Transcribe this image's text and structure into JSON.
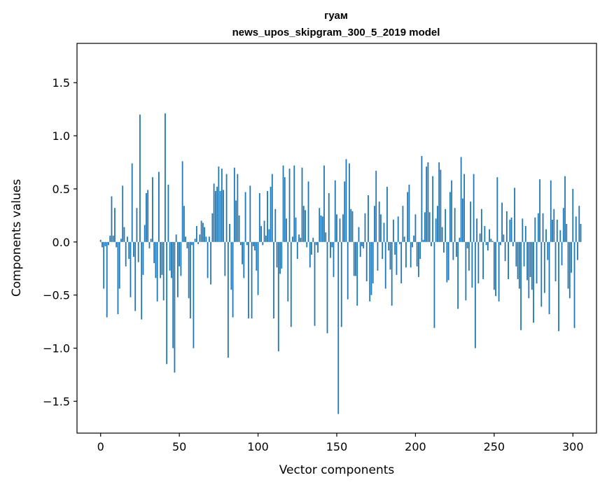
{
  "chart_data": {
    "type": "bar",
    "title": "гуам",
    "subtitle": "news_upos_skipgram_300_5_2019 model",
    "xlabel": "Vector components",
    "ylabel": "Components values",
    "xlim": [
      -15,
      315
    ],
    "ylim": [
      -1.8,
      1.87
    ],
    "xticks": [
      0,
      50,
      100,
      150,
      200,
      250,
      300
    ],
    "xtick_labels": [
      "0",
      "50",
      "100",
      "150",
      "200",
      "250",
      "300"
    ],
    "yticks": [
      -1.5,
      -1.0,
      -0.5,
      0.0,
      0.5,
      1.0,
      1.5
    ],
    "ytick_labels": [
      "−1.5",
      "−1.0",
      "−0.5",
      "0.0",
      "0.5",
      "1.0",
      "1.5"
    ],
    "bar_color": "#1f77b4",
    "grid": false,
    "values": [
      0.02,
      -0.05,
      -0.44,
      -0.04,
      -0.71,
      -0.03,
      0.06,
      0.43,
      0.06,
      0.32,
      -0.05,
      -0.68,
      -0.44,
      0.03,
      0.53,
      0.14,
      -0.23,
      0.05,
      -0.16,
      -0.52,
      0.74,
      -0.14,
      -0.65,
      0.32,
      -0.19,
      1.2,
      -0.73,
      -0.31,
      0.16,
      0.46,
      0.49,
      -0.06,
      0.03,
      0.61,
      -0.2,
      -0.34,
      -0.56,
      0.66,
      -0.34,
      -0.31,
      -0.55,
      1.21,
      -1.15,
      0.54,
      -0.27,
      -0.34,
      -1.0,
      -1.23,
      0.07,
      -0.52,
      -0.23,
      -0.32,
      0.76,
      0.34,
      0.05,
      -0.06,
      -0.53,
      -0.72,
      -0.03,
      -1.0,
      0.03,
      0.15,
      -0.02,
      0.07,
      0.2,
      0.18,
      0.14,
      0.05,
      -0.34,
      0.05,
      -0.4,
      0.27,
      0.55,
      0.48,
      0.52,
      0.71,
      0.48,
      0.69,
      0.49,
      -0.32,
      0.64,
      -1.09,
      0.17,
      -0.45,
      -0.71,
      0.7,
      0.39,
      0.64,
      0.25,
      -0.03,
      -0.21,
      -0.34,
      0.47,
      -0.03,
      -0.72,
      0.53,
      -0.72,
      -0.04,
      -0.08,
      -0.27,
      -0.5,
      0.46,
      0.15,
      -0.03,
      0.2,
      0.06,
      0.48,
      0.12,
      0.52,
      0.64,
      -0.72,
      0.31,
      -0.24,
      -1.03,
      -0.3,
      -0.25,
      0.72,
      0.61,
      0.22,
      -0.56,
      0.69,
      -0.8,
      0.05,
      0.72,
      0.23,
      -0.16,
      0.07,
      0.04,
      0.7,
      0.34,
      0.3,
      -0.05,
      0.57,
      -0.24,
      -0.12,
      0.04,
      -0.79,
      -0.03,
      -0.1,
      0.32,
      0.25,
      0.24,
      0.72,
      0.09,
      -0.86,
      0.46,
      -0.15,
      -0.05,
      -0.33,
      0.58,
      0.26,
      -1.62,
      0.22,
      -0.8,
      0.26,
      0.57,
      0.78,
      -0.54,
      0.74,
      0.31,
      0.29,
      -0.32,
      -0.32,
      -0.6,
      0.14,
      -0.14,
      -0.04,
      -0.06,
      0.27,
      -0.37,
      0.44,
      -0.56,
      -0.5,
      -0.39,
      0.34,
      0.67,
      -0.27,
      0.38,
      0.26,
      -0.16,
      0.18,
      -0.44,
      0.52,
      -0.08,
      -0.26,
      -0.6,
      0.21,
      -0.12,
      -0.31,
      0.24,
      -0.02,
      -0.39,
      0.34,
      0.05,
      -0.24,
      0.47,
      0.54,
      -0.24,
      -0.05,
      0.06,
      0.26,
      -0.23,
      -0.33,
      -0.16,
      0.81,
      0.02,
      0.28,
      0.71,
      0.75,
      0.28,
      -0.04,
      0.62,
      -0.81,
      0.22,
      0.34,
      0.75,
      0.68,
      0.14,
      -0.1,
      0.31,
      -0.38,
      -0.36,
      0.47,
      0.58,
      -0.17,
      0.32,
      -0.14,
      -0.63,
      0.04,
      0.8,
      0.41,
      0.64,
      -0.55,
      -0.06,
      -0.27,
      0.38,
      -0.43,
      0.64,
      -1.0,
      0.22,
      -0.39,
      0.08,
      0.31,
      -0.35,
      0.15,
      -0.03,
      -0.08,
      0.12,
      0.03,
      0.01,
      -0.45,
      -0.51,
      0.61,
      -0.56,
      -0.03,
      0.37,
      0.07,
      -0.18,
      0.29,
      -0.35,
      0.21,
      0.23,
      -0.04,
      0.51,
      -0.23,
      -0.35,
      -0.44,
      -0.83,
      0.22,
      -0.23,
      0.15,
      -0.36,
      -0.53,
      -0.33,
      -0.45,
      -0.76,
      0.23,
      -0.39,
      0.27,
      0.59,
      -0.61,
      0.27,
      -0.48,
      0.12,
      -0.17,
      -0.68,
      0.58,
      0.21,
      0.31,
      -0.37,
      0.21,
      -0.84,
      0.11,
      -0.22,
      0.32,
      0.62,
      0.17,
      -0.44,
      -0.53,
      -0.29,
      0.5,
      -0.81,
      0.24,
      -0.17,
      0.34,
      0.17
    ]
  }
}
